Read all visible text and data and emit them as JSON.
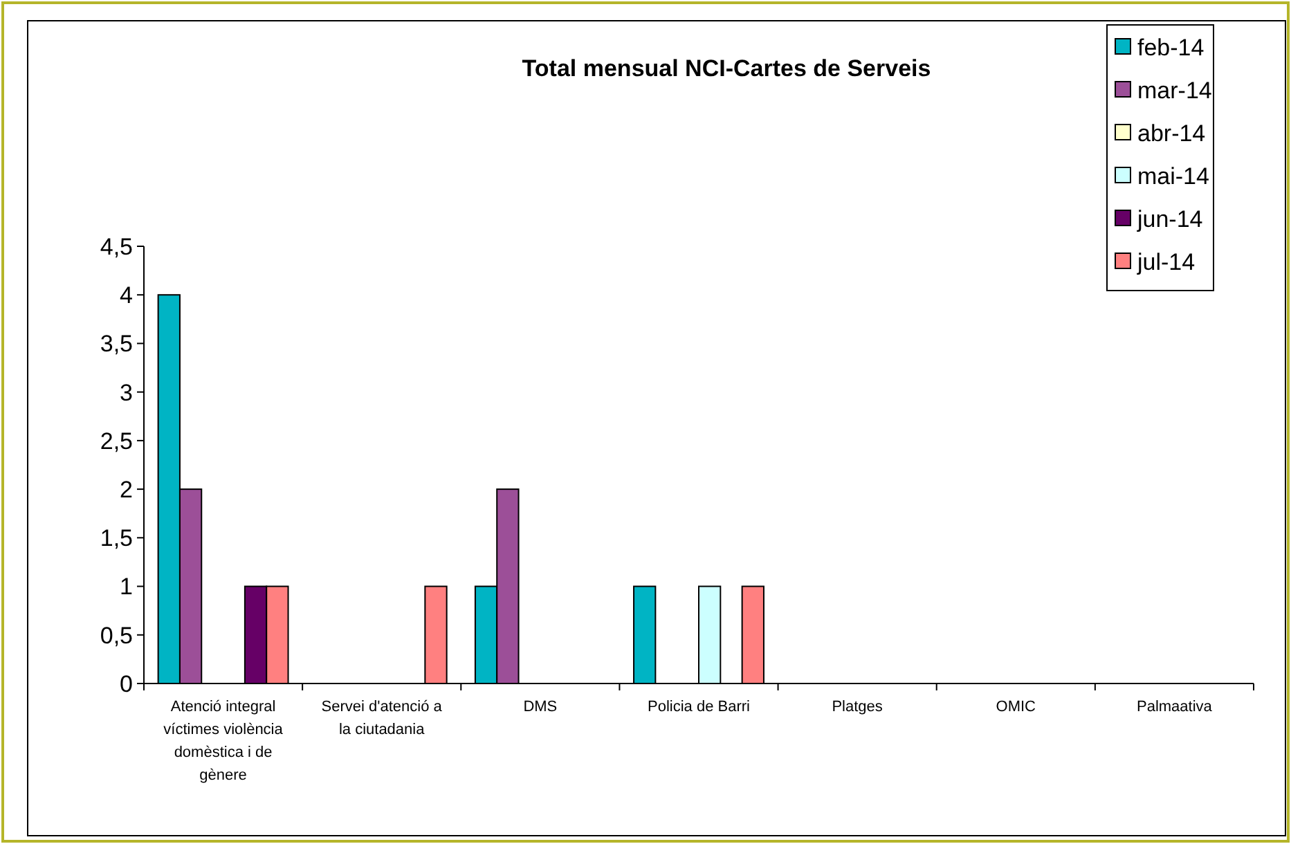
{
  "chart_data": {
    "type": "bar",
    "title": "Total mensual NCI-Cartes de Serveis",
    "categories": [
      "Atenció integral víctimes violència domèstica i de gènere",
      "Servei d'atenció a la ciutadania",
      "DMS",
      "Policia de Barri",
      "Platges",
      "OMIC",
      "Palmaativa"
    ],
    "series": [
      {
        "name": "feb-14",
        "color": "#00b4c4",
        "values": [
          4,
          null,
          1,
          1,
          null,
          null,
          null
        ]
      },
      {
        "name": "mar-14",
        "color": "#9c4f98",
        "values": [
          2,
          null,
          2,
          null,
          null,
          null,
          null
        ]
      },
      {
        "name": "abr-14",
        "color": "#ffffcc",
        "values": [
          null,
          null,
          null,
          null,
          null,
          null,
          null
        ]
      },
      {
        "name": "mai-14",
        "color": "#ccffff",
        "values": [
          null,
          null,
          null,
          1,
          null,
          null,
          null
        ]
      },
      {
        "name": "jun-14",
        "color": "#660066",
        "values": [
          1,
          null,
          null,
          null,
          null,
          null,
          null
        ]
      },
      {
        "name": "jul-14",
        "color": "#ff8080",
        "values": [
          1,
          1,
          null,
          1,
          null,
          null,
          null
        ]
      }
    ],
    "ylim": [
      0,
      4.5
    ],
    "yticks": [
      0,
      {
        "value": 0.5,
        "label": "0,5"
      },
      1,
      {
        "value": 1.5,
        "label": "1,5"
      },
      2,
      {
        "value": 2.5,
        "label": "2,5"
      },
      3,
      {
        "value": 3.5,
        "label": "3,5"
      },
      4,
      {
        "value": 4.5,
        "label": "4,5"
      }
    ],
    "grid": false,
    "legend": "top right"
  }
}
